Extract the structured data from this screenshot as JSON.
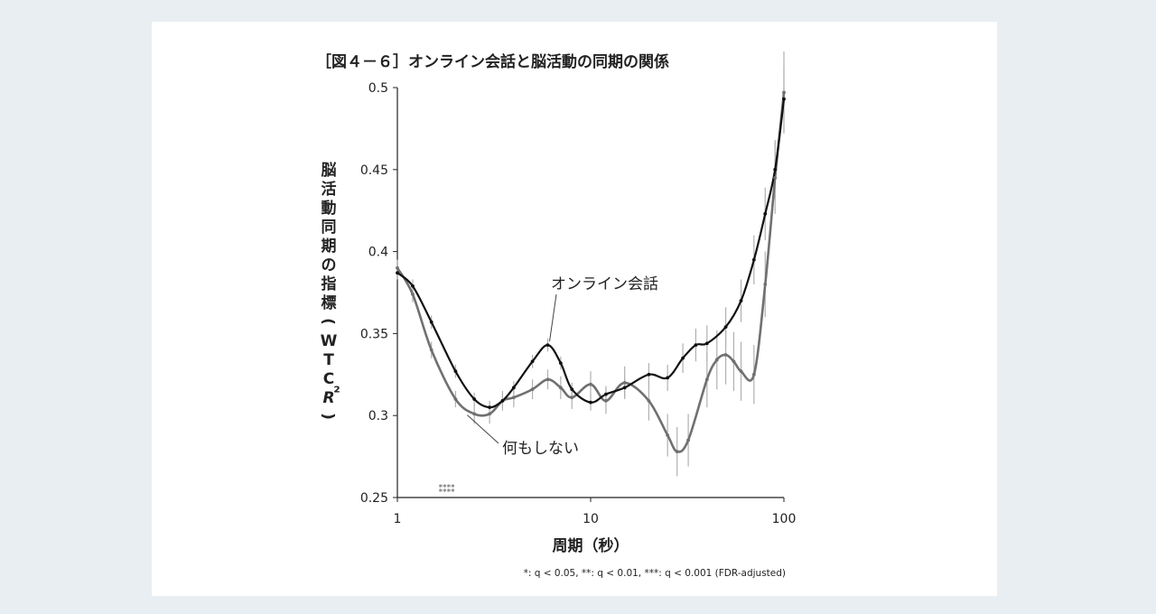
{
  "chart_data": {
    "type": "line",
    "title": "［図４－６］オンライン会話と脳活動の同期の関係",
    "xlabel": "周期（秒）",
    "ylabel": "脳活動同期の指標（WTC R²）",
    "x_scale": "log",
    "xlim": [
      1,
      100
    ],
    "ylim": [
      0.25,
      0.5
    ],
    "x_ticks": [
      "1",
      "10",
      "100"
    ],
    "y_ticks": [
      "0.25",
      "0.3",
      "0.35",
      "0.4",
      "0.45",
      "0.5"
    ],
    "grid": false,
    "legend": "none",
    "series": [
      {
        "name": "オンライン会話",
        "color": "#111111",
        "x": [
          1,
          1.2,
          1.5,
          2,
          2.5,
          3,
          3.5,
          4,
          5,
          6,
          7,
          8,
          10,
          12,
          15,
          20,
          25,
          30,
          35,
          40,
          50,
          60,
          70,
          80,
          90,
          100
        ],
        "y": [
          0.387,
          0.379,
          0.357,
          0.327,
          0.31,
          0.305,
          0.309,
          0.317,
          0.333,
          0.343,
          0.332,
          0.316,
          0.308,
          0.313,
          0.317,
          0.325,
          0.323,
          0.335,
          0.343,
          0.344,
          0.354,
          0.37,
          0.395,
          0.423,
          0.45,
          0.493
        ],
        "error": [
          0.004,
          0.004,
          0.004,
          0.004,
          0.004,
          0.004,
          0.004,
          0.004,
          0.004,
          0.004,
          0.004,
          0.004,
          0.005,
          0.005,
          0.006,
          0.007,
          0.008,
          0.009,
          0.01,
          0.011,
          0.012,
          0.013,
          0.015,
          0.016,
          0.018,
          0.02
        ]
      },
      {
        "name": "何もしない",
        "color": "#707070",
        "x": [
          1,
          1.2,
          1.5,
          2,
          2.5,
          3,
          3.5,
          4,
          5,
          6,
          7,
          8,
          10,
          12,
          15,
          20,
          25,
          28,
          32,
          40,
          45,
          50,
          55,
          60,
          70,
          80,
          90,
          100
        ],
        "y": [
          0.39,
          0.374,
          0.34,
          0.31,
          0.301,
          0.301,
          0.309,
          0.311,
          0.316,
          0.322,
          0.317,
          0.311,
          0.319,
          0.309,
          0.32,
          0.309,
          0.288,
          0.278,
          0.285,
          0.322,
          0.334,
          0.337,
          0.333,
          0.327,
          0.325,
          0.38,
          0.445,
          0.497
        ],
        "error": [
          0.005,
          0.005,
          0.005,
          0.005,
          0.006,
          0.006,
          0.006,
          0.006,
          0.006,
          0.006,
          0.007,
          0.007,
          0.008,
          0.008,
          0.01,
          0.012,
          0.013,
          0.015,
          0.016,
          0.017,
          0.018,
          0.018,
          0.018,
          0.018,
          0.018,
          0.02,
          0.022,
          0.025
        ]
      }
    ],
    "annotations": [
      {
        "text": "オンライン会話",
        "series": 0,
        "target_x": 6,
        "target_y": 0.343
      },
      {
        "text": "何もしない",
        "series": 1,
        "target_x": 2.3,
        "target_y": 0.302
      }
    ],
    "significance_marks": [
      {
        "text": "****",
        "x": 1.8,
        "y": 0.257
      },
      {
        "text": "****",
        "x": 1.8,
        "y": 0.254
      }
    ],
    "footnote": "*: q < 0.05, **: q < 0.01, ***: q < 0.001 (FDR-adjusted)"
  }
}
